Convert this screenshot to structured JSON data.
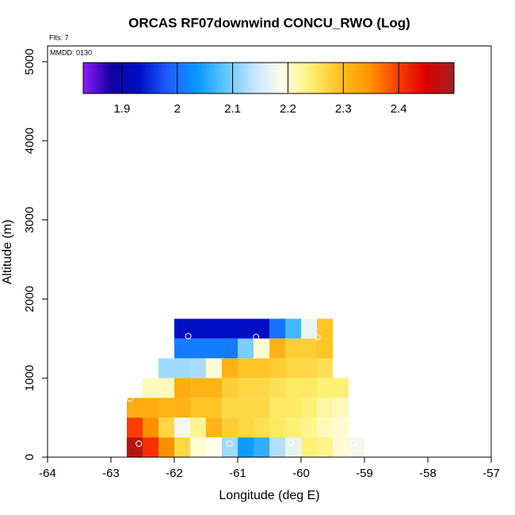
{
  "chart_data": {
    "type": "heatmap",
    "title": "ORCAS RF07downwind CONCU_RWO (Log)",
    "annotations": [
      "Flts: 7",
      "MMDD: 0130"
    ],
    "xlabel": "Longitude (deg E)",
    "ylabel": "Altitude (m)",
    "xlim": [
      -64,
      -57
    ],
    "xticks": [
      -64,
      -63,
      -62,
      -61,
      -60,
      -59,
      -58,
      -57
    ],
    "ylim": [
      0,
      5200
    ],
    "yticks": [
      0,
      1000,
      2000,
      3000,
      4000,
      5000
    ],
    "x": [
      -62.75,
      -62.5,
      -62.25,
      -62.0,
      -61.75,
      -61.5,
      -61.25,
      -61.0,
      -60.75,
      -60.5,
      -60.25,
      -60.0,
      -59.75,
      -59.5,
      -59.25,
      -59.0
    ],
    "y": [
      0,
      250,
      500,
      750,
      1000,
      1250,
      1500,
      1750
    ],
    "z": [
      [
        2.48,
        2.41,
        2.35,
        2.27,
        2.2,
        2.19,
        2.12,
        2.04,
        2.06,
        2.13,
        2.17,
        2.24,
        2.23,
        2.2,
        2.18
      ],
      [
        2.4,
        2.35,
        2.27,
        2.18,
        2.23,
        2.31,
        2.28,
        2.27,
        2.26,
        2.25,
        2.24,
        2.23,
        2.21,
        2.2,
        null
      ],
      [
        2.32,
        2.32,
        2.31,
        2.31,
        2.29,
        2.29,
        2.27,
        2.27,
        2.27,
        2.25,
        2.25,
        2.24,
        2.22,
        2.21,
        null
      ],
      [
        null,
        2.21,
        2.21,
        2.32,
        2.31,
        2.31,
        2.28,
        2.27,
        2.27,
        2.26,
        2.25,
        2.25,
        2.24,
        2.24,
        null
      ],
      [
        null,
        null,
        2.12,
        2.12,
        2.125,
        2.2,
        2.31,
        2.29,
        2.29,
        2.28,
        2.27,
        2.27,
        2.26,
        null,
        null
      ],
      [
        null,
        null,
        null,
        2.01,
        2.01,
        2.01,
        2.01,
        2.1,
        2.2,
        2.31,
        2.28,
        2.28,
        2.29,
        null,
        null
      ],
      [
        null,
        null,
        null,
        1.93,
        1.93,
        1.93,
        1.93,
        1.93,
        1.93,
        2.0,
        2.07,
        2.17,
        2.29,
        null,
        null
      ]
    ],
    "points": {
      "x": [
        -62.56,
        -62.7,
        -61.78,
        -61.13,
        -60.71,
        -60.16,
        -59.74,
        -59.18
      ],
      "y": [
        170,
        740,
        1530,
        170,
        1520,
        180,
        1520,
        180
      ]
    },
    "clim": [
      1.83,
      2.5
    ],
    "cticks": [
      1.9,
      2.0,
      2.1,
      2.2,
      2.3,
      2.4
    ],
    "colorscale": [
      "#8c1cff",
      "#10009c",
      "#0010c8",
      "#2060ff",
      "#0898ff",
      "#60c8ff",
      "#c8e4ff",
      "#ffffe8",
      "#fff070",
      "#ffc020",
      "#ff9800",
      "#ff4000",
      "#dd0000",
      "#a02020"
    ]
  }
}
